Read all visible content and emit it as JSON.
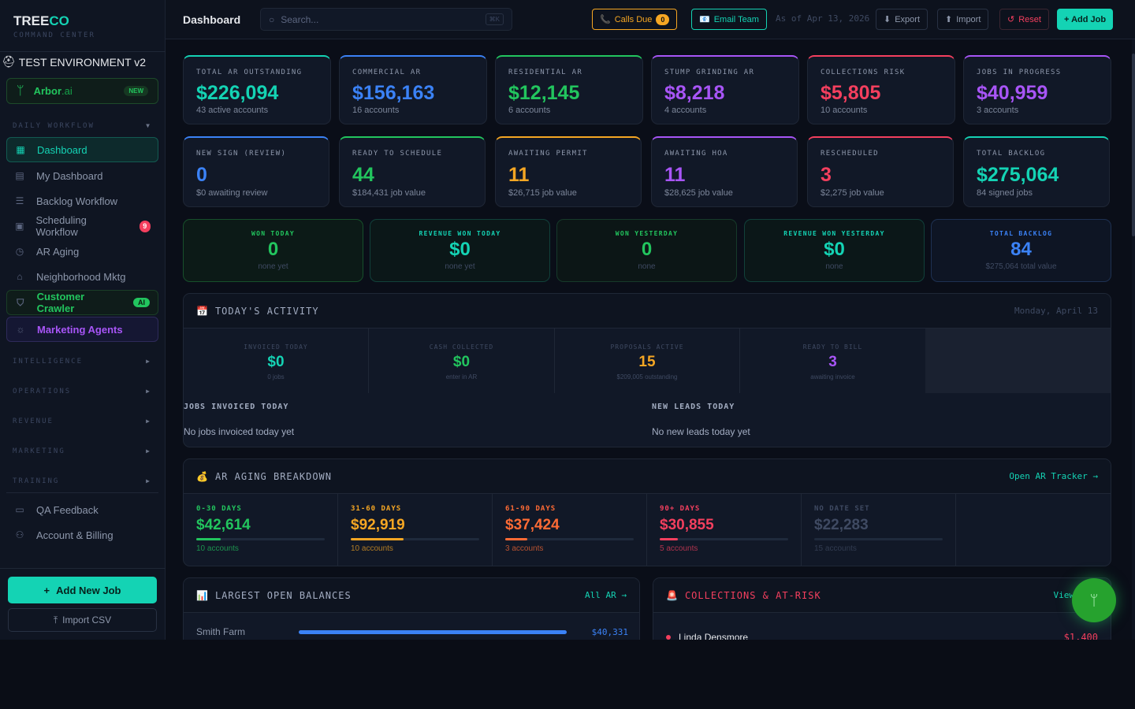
{
  "brand": {
    "name_a": "TREE",
    "name_b": "CO",
    "subtitle": "COMMAND CENTER",
    "environment": "TEST ENVIRONMENT v2"
  },
  "arbor": {
    "name": "Arbor",
    "suffix": ".ai",
    "badge": "NEW"
  },
  "sidebar": {
    "daily_workflow": "DAILY WORKFLOW",
    "items": [
      {
        "label": "Dashboard",
        "icon": "grid-icon"
      },
      {
        "label": "My Dashboard",
        "icon": "layout-icon"
      },
      {
        "label": "Backlog Workflow",
        "icon": "list-icon"
      },
      {
        "label": "Scheduling Workflow",
        "icon": "calendar-icon",
        "count": "9"
      },
      {
        "label": "AR Aging",
        "icon": "clock-icon"
      },
      {
        "label": "Neighborhood Mktg",
        "icon": "home-icon"
      },
      {
        "label": "Customer Crawler",
        "icon": "shield-icon",
        "badge": "AI"
      },
      {
        "label": "Marketing Agents",
        "icon": "sun-icon"
      }
    ],
    "sections": [
      "INTELLIGENCE",
      "OPERATIONS",
      "REVENUE",
      "MARKETING",
      "TRAINING"
    ],
    "bottom_items": [
      {
        "label": "QA Feedback"
      },
      {
        "label": "Account & Billing"
      }
    ],
    "add_job": "Add New Job",
    "import_csv": "Import CSV"
  },
  "topbar": {
    "title": "Dashboard",
    "search_placeholder": "Search...",
    "shortcut": "⌘K",
    "calls_due": "Calls Due",
    "calls_count": "0",
    "email_team": "Email Team",
    "as_of": "As of Apr 13, 2026",
    "export": "Export",
    "import": "Import",
    "reset": "Reset",
    "add_job": "+ Add Job"
  },
  "colors": {
    "teal": "#14d3b4",
    "blue": "#3b82f6",
    "green": "#22c55e",
    "orange": "#f5a623",
    "purple": "#a855f7",
    "red": "#f43f5e",
    "coral": "#ff6b35"
  },
  "kpis_row1": [
    {
      "label": "TOTAL AR OUTSTANDING",
      "value": "$226,094",
      "sub": "43 active accounts"
    },
    {
      "label": "COMMERCIAL AR",
      "value": "$156,163",
      "sub": "16 accounts"
    },
    {
      "label": "RESIDENTIAL AR",
      "value": "$12,145",
      "sub": "6 accounts"
    },
    {
      "label": "STUMP GRINDING AR",
      "value": "$8,218",
      "sub": "4 accounts"
    },
    {
      "label": "COLLECTIONS RISK",
      "value": "$5,805",
      "sub": "10 accounts"
    },
    {
      "label": "JOBS IN PROGRESS",
      "value": "$40,959",
      "sub": "3 accounts"
    }
  ],
  "kpis_row2": [
    {
      "label": "NEW SIGN (REVIEW)",
      "value": "0",
      "sub": "$0 awaiting review"
    },
    {
      "label": "READY TO SCHEDULE",
      "value": "44",
      "sub": "$184,431 job value"
    },
    {
      "label": "AWAITING PERMIT",
      "value": "11",
      "sub": "$26,715 job value"
    },
    {
      "label": "AWAITING HOA",
      "value": "11",
      "sub": "$28,625 job value"
    },
    {
      "label": "RESCHEDULED",
      "value": "3",
      "sub": "$2,275 job value"
    },
    {
      "label": "TOTAL BACKLOG",
      "value": "$275,064",
      "sub": "84 signed jobs"
    }
  ],
  "won": [
    {
      "label": "WON TODAY",
      "value": "0",
      "sub": "none yet"
    },
    {
      "label": "REVENUE WON TODAY",
      "value": "$0",
      "sub": "none yet"
    },
    {
      "label": "WON YESTERDAY",
      "value": "0",
      "sub": "none"
    },
    {
      "label": "REVENUE WON YESTERDAY",
      "value": "$0",
      "sub": "none"
    },
    {
      "label": "TOTAL BACKLOG",
      "value": "84",
      "sub": "$275,064 total value"
    }
  ],
  "activity": {
    "title": "TODAY'S ACTIVITY",
    "date": "Monday, April 13",
    "stats": [
      {
        "label": "INVOICED TODAY",
        "value": "$0",
        "sub": "0 jobs"
      },
      {
        "label": "CASH COLLECTED",
        "value": "$0",
        "sub": "enter in AR"
      },
      {
        "label": "PROPOSALS ACTIVE",
        "value": "15",
        "sub": "$209,005 outstanding"
      },
      {
        "label": "READY TO BILL",
        "value": "3",
        "sub": "awaiting invoice"
      }
    ],
    "jobs_invoiced_title": "JOBS INVOICED TODAY",
    "jobs_invoiced_empty": "No jobs invoiced today yet",
    "new_leads_title": "NEW LEADS TODAY",
    "new_leads_empty": "No new leads today yet"
  },
  "aging": {
    "title": "AR AGING BREAKDOWN",
    "link": "Open AR Tracker →",
    "buckets": [
      {
        "label": "0-30 DAYS",
        "value": "$42,614",
        "sub": "10 accounts",
        "fill": 0.19
      },
      {
        "label": "31-60 DAYS",
        "value": "$92,919",
        "sub": "10 accounts",
        "fill": 0.41
      },
      {
        "label": "61-90 DAYS",
        "value": "$37,424",
        "sub": "3 accounts",
        "fill": 0.17
      },
      {
        "label": "90+ DAYS",
        "value": "$30,855",
        "sub": "5 accounts",
        "fill": 0.14
      },
      {
        "label": "NO DATE SET",
        "value": "$22,283",
        "sub": "15 accounts",
        "fill": 0
      }
    ]
  },
  "balances": {
    "title": "LARGEST OPEN BALANCES",
    "link": "All AR →",
    "rows": [
      {
        "name": "Smith Farm",
        "value": "$40,331",
        "fill": 1.0
      }
    ]
  },
  "collections": {
    "title": "COLLECTIONS & AT-RISK",
    "link": "View",
    "rows": [
      {
        "name": "Linda Densmore",
        "value": "$1,400"
      }
    ]
  }
}
